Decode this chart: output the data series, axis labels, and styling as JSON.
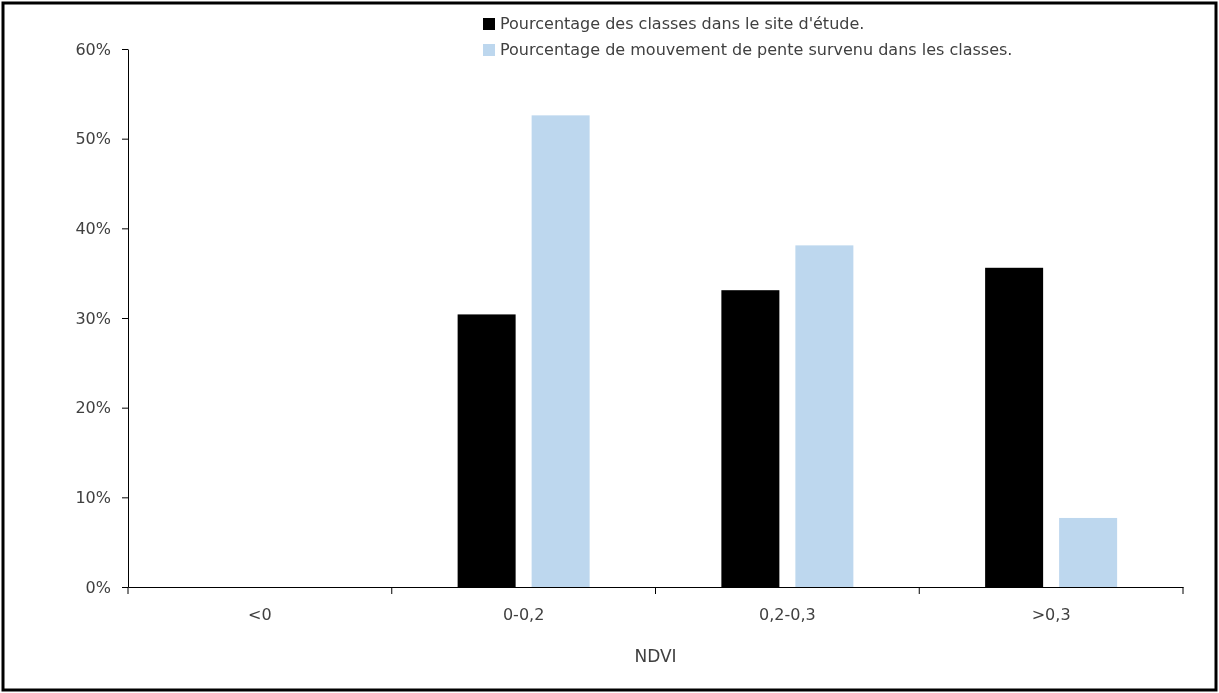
{
  "chart_data": {
    "type": "bar",
    "xlabel": "NDVI",
    "categories": [
      "<0",
      "0-0,2",
      "0,2-0,3",
      ">0,3"
    ],
    "series": [
      {
        "name": "Pourcentage des classes dans le site d'étude.",
        "color": "#000000",
        "values": [
          0,
          30.4,
          33.1,
          35.6
        ]
      },
      {
        "name": "Pourcentage de mouvement de pente survenu dans les classes.",
        "color": "#bdd7ee",
        "values": [
          0,
          52.6,
          38.1,
          7.7
        ]
      }
    ],
    "ylim": [
      0,
      60
    ],
    "yticks": [
      {
        "value": 0,
        "label": "0%"
      },
      {
        "value": 10,
        "label": "10%"
      },
      {
        "value": 20,
        "label": "20%"
      },
      {
        "value": 30,
        "label": "30%"
      },
      {
        "value": 40,
        "label": "40%"
      },
      {
        "value": 50,
        "label": "50%"
      },
      {
        "value": 60,
        "label": "60%"
      }
    ],
    "grid": false,
    "legend": "top right"
  }
}
